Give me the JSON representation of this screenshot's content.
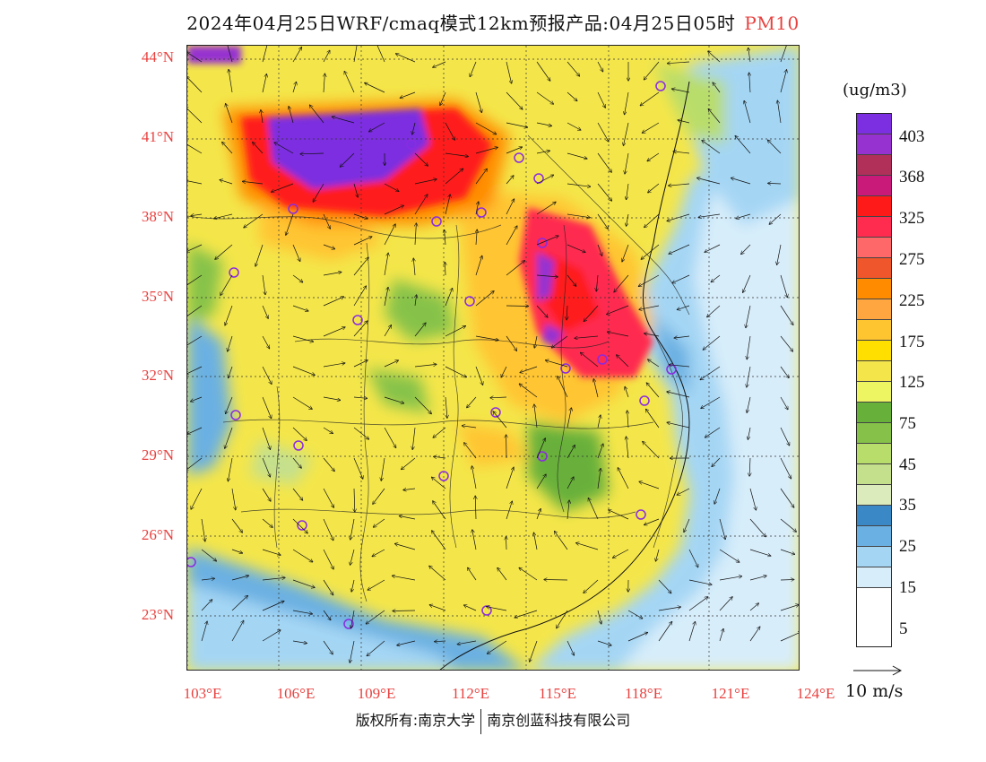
{
  "title": {
    "main": "2024年04月25日WRF/cmaq模式12km预报产品:04月25日05时",
    "species": "PM10",
    "species_color": "#e8413f"
  },
  "map": {
    "lat_labels": [
      "44°N",
      "41°N",
      "38°N",
      "35°N",
      "32°N",
      "29°N",
      "26°N",
      "23°N"
    ],
    "lon_labels": [
      "103°E",
      "106°E",
      "109°E",
      "112°E",
      "115°E",
      "118°E",
      "121°E",
      "124°E"
    ],
    "label_color": "#e8413f"
  },
  "legend": {
    "unit": "(ug/m3)",
    "swatches": [
      "#7b2fe0",
      "#9633d0",
      "#b0305a",
      "#c91a7a",
      "#ff1a1a",
      "#ff2c4f",
      "#ff6868",
      "#f0562c",
      "#ff8c00",
      "#ffa640",
      "#ffc530",
      "#ffdf00",
      "#f4e64a",
      "#eef562",
      "#67b03a",
      "#86c24a",
      "#b9dd6b",
      "#c5e08d",
      "#dcebbc",
      "#3a88c6",
      "#6ab0e2",
      "#a4d6f4",
      "#d7edfa",
      "#ffffff"
    ],
    "labels": [
      "403",
      "368",
      "325",
      "275",
      "225",
      "175",
      "125",
      "75",
      "45",
      "35",
      "25",
      "15",
      "5"
    ]
  },
  "wind_reference": {
    "label": "10 m/s"
  },
  "footer": {
    "left": "版权所有:南京大学",
    "right": "南京创蓝科技有限公司"
  }
}
